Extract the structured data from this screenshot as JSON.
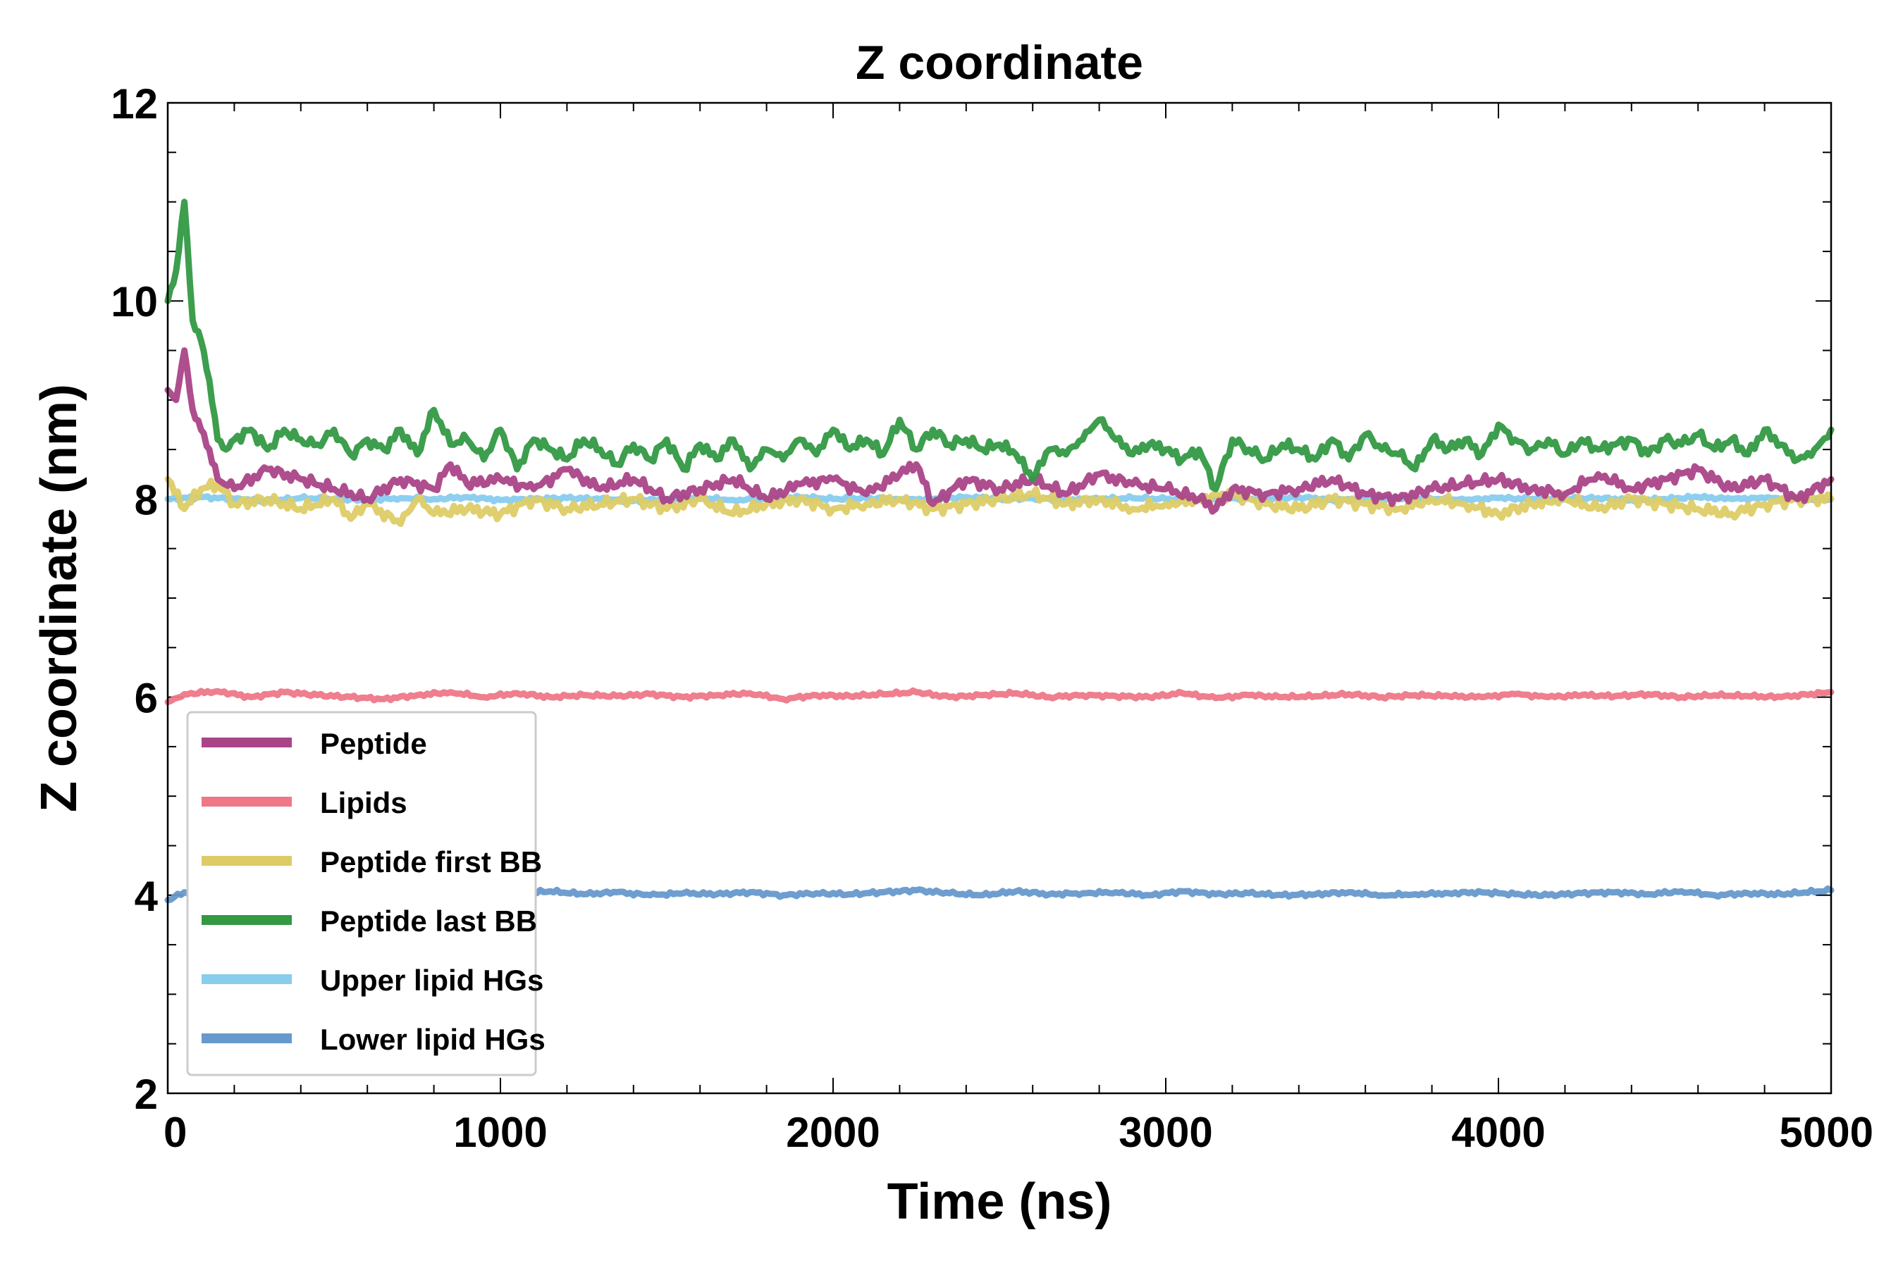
{
  "chart_data": {
    "type": "line",
    "title": "Z coordinate",
    "xlabel": "Time (ns)",
    "ylabel": "Z coordinate (nm)",
    "xlim": [
      0,
      5000
    ],
    "ylim": [
      2,
      12
    ],
    "xticks": [
      0,
      1000,
      2000,
      3000,
      4000,
      5000
    ],
    "yticks": [
      2,
      4,
      6,
      8,
      10,
      12
    ],
    "xtick_labels": [
      "0",
      "1000",
      "2000",
      "3000",
      "4000",
      "5000"
    ],
    "ytick_labels": [
      "2",
      "4",
      "6",
      "8",
      "10",
      "12"
    ],
    "x_minor_step": 200,
    "y_minor_step": 0.5,
    "grid": false,
    "legend_position": "lower-left",
    "series": [
      {
        "name": "Peptide",
        "color": "#aa4488",
        "x": [
          0,
          25,
          50,
          75,
          100,
          125,
          150,
          200,
          300,
          400,
          500,
          600,
          700,
          800,
          850,
          900,
          1000,
          1100,
          1200,
          1300,
          1400,
          1500,
          1600,
          1700,
          1800,
          1900,
          2000,
          2100,
          2200,
          2250,
          2300,
          2400,
          2500,
          2600,
          2700,
          2800,
          2900,
          3000,
          3100,
          3150,
          3200,
          3300,
          3400,
          3500,
          3600,
          3700,
          3800,
          3900,
          4000,
          4100,
          4200,
          4300,
          4400,
          4500,
          4600,
          4700,
          4800,
          4900,
          5000
        ],
        "values": [
          9.1,
          9.0,
          9.5,
          8.9,
          8.7,
          8.5,
          8.2,
          8.1,
          8.3,
          8.2,
          8.1,
          8.0,
          8.2,
          8.1,
          8.35,
          8.15,
          8.2,
          8.1,
          8.3,
          8.1,
          8.2,
          8.0,
          8.1,
          8.2,
          8.0,
          8.15,
          8.2,
          8.05,
          8.25,
          8.35,
          7.95,
          8.2,
          8.1,
          8.2,
          8.05,
          8.25,
          8.15,
          8.1,
          8.0,
          7.9,
          8.1,
          8.05,
          8.1,
          8.2,
          8.05,
          8.0,
          8.1,
          8.15,
          8.2,
          8.1,
          8.05,
          8.25,
          8.1,
          8.2,
          8.3,
          8.1,
          8.2,
          8.0,
          8.2
        ]
      },
      {
        "name": "Lipids",
        "color": "#ee7788",
        "x": [
          0,
          50,
          150,
          250,
          350,
          450,
          550,
          650,
          750,
          850,
          950,
          1050,
          1150,
          1250,
          1350,
          1450,
          1550,
          1650,
          1750,
          1850,
          1950,
          2050,
          2150,
          2250,
          2350,
          2450,
          2550,
          2650,
          2750,
          2850,
          2950,
          3050,
          3150,
          3250,
          3350,
          3450,
          3550,
          3650,
          3750,
          3850,
          3950,
          4050,
          4150,
          4250,
          4350,
          4450,
          4550,
          4650,
          4750,
          4850,
          5000
        ],
        "values": [
          5.95,
          6.03,
          6.06,
          6.0,
          6.05,
          6.02,
          6.0,
          5.98,
          6.02,
          6.05,
          6.0,
          6.04,
          6.0,
          6.02,
          6.01,
          6.03,
          6.0,
          6.02,
          6.04,
          5.98,
          6.02,
          6.01,
          6.03,
          6.05,
          6.0,
          6.02,
          6.04,
          6.0,
          6.02,
          6.01,
          6.0,
          6.04,
          5.99,
          6.02,
          6.0,
          6.01,
          6.03,
          6.0,
          6.02,
          6.01,
          6.0,
          6.03,
          6.0,
          6.02,
          6.01,
          6.03,
          6.0,
          6.02,
          6.01,
          6.0,
          6.05
        ]
      },
      {
        "name": "Peptide first BB",
        "color": "#ddcc66",
        "x": [
          0,
          50,
          100,
          150,
          200,
          300,
          400,
          500,
          550,
          600,
          700,
          750,
          800,
          900,
          1000,
          1100,
          1200,
          1300,
          1400,
          1500,
          1600,
          1700,
          1800,
          1900,
          2000,
          2100,
          2200,
          2300,
          2400,
          2500,
          2600,
          2700,
          2800,
          2900,
          3000,
          3100,
          3200,
          3300,
          3400,
          3500,
          3600,
          3700,
          3800,
          3900,
          4000,
          4100,
          4200,
          4300,
          4400,
          4500,
          4600,
          4700,
          4800,
          4900,
          5000
        ],
        "values": [
          8.2,
          7.9,
          8.1,
          8.15,
          7.95,
          8.0,
          7.9,
          8.0,
          7.8,
          7.95,
          7.75,
          8.0,
          7.85,
          7.9,
          7.85,
          8.0,
          7.9,
          7.95,
          8.0,
          7.9,
          8.0,
          7.85,
          7.95,
          8.0,
          7.9,
          7.95,
          8.0,
          7.9,
          7.95,
          8.0,
          8.05,
          7.95,
          8.0,
          7.9,
          7.95,
          8.0,
          8.05,
          7.95,
          7.9,
          8.0,
          7.95,
          7.9,
          8.0,
          7.95,
          7.85,
          7.95,
          8.0,
          7.9,
          8.0,
          7.95,
          7.9,
          7.85,
          7.95,
          8.0,
          8.0
        ]
      },
      {
        "name": "Peptide last BB",
        "color": "#339944",
        "x": [
          0,
          25,
          50,
          75,
          100,
          125,
          150,
          175,
          200,
          250,
          300,
          350,
          400,
          450,
          500,
          550,
          600,
          650,
          700,
          750,
          800,
          850,
          900,
          950,
          1000,
          1050,
          1100,
          1150,
          1200,
          1250,
          1300,
          1350,
          1400,
          1450,
          1500,
          1550,
          1600,
          1650,
          1700,
          1750,
          1800,
          1850,
          1900,
          1950,
          2000,
          2050,
          2100,
          2150,
          2200,
          2250,
          2300,
          2350,
          2400,
          2450,
          2500,
          2550,
          2600,
          2650,
          2700,
          2750,
          2800,
          2850,
          2900,
          2950,
          3000,
          3050,
          3100,
          3150,
          3200,
          3250,
          3300,
          3350,
          3400,
          3450,
          3500,
          3550,
          3600,
          3650,
          3700,
          3750,
          3800,
          3850,
          3900,
          3950,
          4000,
          4050,
          4100,
          4150,
          4200,
          4250,
          4300,
          4350,
          4400,
          4450,
          4500,
          4550,
          4600,
          4650,
          4700,
          4750,
          4800,
          4850,
          4900,
          4950,
          5000
        ],
        "values": [
          10.0,
          10.3,
          11.0,
          9.8,
          9.6,
          9.2,
          8.6,
          8.5,
          8.6,
          8.7,
          8.5,
          8.7,
          8.6,
          8.55,
          8.7,
          8.45,
          8.6,
          8.5,
          8.7,
          8.45,
          8.9,
          8.55,
          8.6,
          8.4,
          8.7,
          8.3,
          8.6,
          8.5,
          8.4,
          8.6,
          8.5,
          8.35,
          8.55,
          8.4,
          8.6,
          8.3,
          8.55,
          8.4,
          8.6,
          8.3,
          8.5,
          8.4,
          8.6,
          8.45,
          8.7,
          8.5,
          8.6,
          8.45,
          8.8,
          8.5,
          8.7,
          8.55,
          8.6,
          8.5,
          8.55,
          8.45,
          8.2,
          8.5,
          8.45,
          8.6,
          8.8,
          8.6,
          8.45,
          8.55,
          8.5,
          8.4,
          8.5,
          8.1,
          8.6,
          8.5,
          8.4,
          8.55,
          8.5,
          8.4,
          8.6,
          8.4,
          8.65,
          8.5,
          8.45,
          8.3,
          8.6,
          8.5,
          8.6,
          8.45,
          8.75,
          8.6,
          8.5,
          8.6,
          8.45,
          8.6,
          8.5,
          8.55,
          8.6,
          8.45,
          8.6,
          8.55,
          8.65,
          8.5,
          8.6,
          8.45,
          8.7,
          8.55,
          8.4,
          8.5,
          8.7
        ]
      },
      {
        "name": "Upper lipid HGs",
        "color": "#88ccee",
        "x": [
          0,
          100,
          200,
          300,
          400,
          500,
          600,
          700,
          800,
          900,
          1000,
          1100,
          1200,
          1300,
          1400,
          1500,
          1600,
          1700,
          1800,
          1900,
          2000,
          2100,
          2200,
          2300,
          2400,
          2500,
          2600,
          2700,
          2800,
          2900,
          3000,
          3100,
          3200,
          3300,
          3400,
          3500,
          3600,
          3700,
          3800,
          3900,
          4000,
          4100,
          4200,
          4300,
          4400,
          4500,
          4600,
          4700,
          4800,
          4900,
          5000
        ],
        "values": [
          8.0,
          8.02,
          8.0,
          7.98,
          8.01,
          8.0,
          7.99,
          8.01,
          8.0,
          8.02,
          7.99,
          8.0,
          8.01,
          8.0,
          7.98,
          8.0,
          8.01,
          7.99,
          8.0,
          8.02,
          8.0,
          8.01,
          7.99,
          8.0,
          8.02,
          8.0,
          8.01,
          7.99,
          8.0,
          8.01,
          8.0,
          7.99,
          8.01,
          8.0,
          8.02,
          7.99,
          8.0,
          8.01,
          8.0,
          7.99,
          8.01,
          8.0,
          8.0,
          8.01,
          7.99,
          8.0,
          8.02,
          8.0,
          8.01,
          8.0,
          8.0
        ]
      },
      {
        "name": "Lower lipid HGs",
        "color": "#6699cc",
        "x": [
          0,
          50,
          150,
          250,
          350,
          450,
          550,
          650,
          750,
          850,
          950,
          1050,
          1150,
          1250,
          1350,
          1450,
          1550,
          1650,
          1750,
          1850,
          1950,
          2050,
          2150,
          2250,
          2350,
          2450,
          2550,
          2650,
          2750,
          2850,
          2950,
          3050,
          3150,
          3250,
          3350,
          3450,
          3550,
          3650,
          3750,
          3850,
          3950,
          4050,
          4150,
          4250,
          4350,
          4450,
          4550,
          4650,
          4750,
          4850,
          5000
        ],
        "values": [
          3.95,
          4.03,
          4.06,
          4.02,
          4.04,
          4.0,
          4.03,
          4.01,
          4.02,
          4.04,
          4.0,
          4.02,
          4.04,
          4.01,
          4.03,
          4.0,
          4.02,
          4.01,
          4.03,
          4.0,
          4.02,
          4.01,
          4.03,
          4.05,
          4.02,
          4.0,
          4.04,
          4.01,
          4.02,
          4.03,
          4.0,
          4.04,
          4.01,
          4.02,
          4.0,
          4.01,
          4.03,
          4.0,
          4.01,
          4.02,
          4.03,
          4.01,
          4.0,
          4.02,
          4.03,
          4.01,
          4.04,
          4.0,
          4.02,
          4.01,
          4.05
        ]
      }
    ]
  }
}
